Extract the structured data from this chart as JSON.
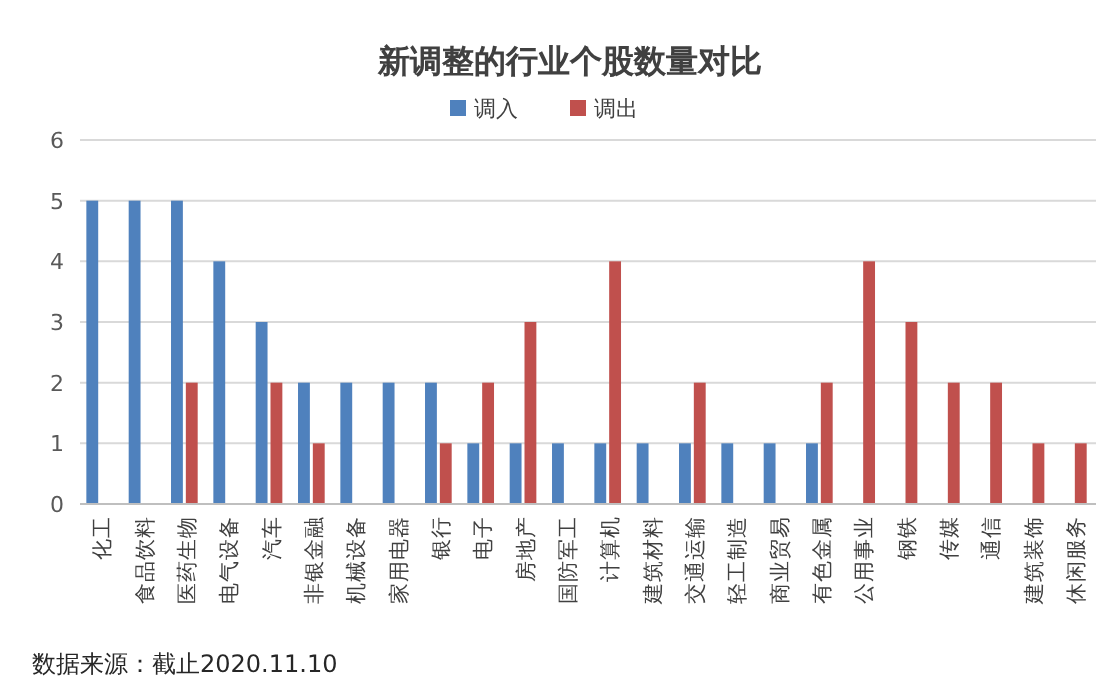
{
  "chart_data": {
    "type": "bar",
    "title": "新调整的行业个股数量对比",
    "categories": [
      "化工",
      "食品饮料",
      "医药生物",
      "电气设备",
      "汽车",
      "非银金融",
      "机械设备",
      "家用电器",
      "银行",
      "电子",
      "房地产",
      "国防军工",
      "计算机",
      "建筑材料",
      "交通运输",
      "轻工制造",
      "商业贸易",
      "有色金属",
      "公用事业",
      "钢铁",
      "传媒",
      "通信",
      "建筑装饰",
      "休闲服务"
    ],
    "series": [
      {
        "name": "调入",
        "color": "#4f81bd",
        "values": [
          5,
          5,
          5,
          4,
          3,
          2,
          2,
          2,
          2,
          1,
          1,
          1,
          1,
          1,
          1,
          1,
          1,
          1,
          0,
          0,
          0,
          0,
          0,
          0
        ]
      },
      {
        "name": "调出",
        "color": "#c0504d",
        "values": [
          0,
          0,
          2,
          0,
          2,
          1,
          0,
          0,
          1,
          2,
          3,
          0,
          4,
          0,
          2,
          0,
          0,
          2,
          4,
          3,
          2,
          2,
          1,
          1
        ]
      }
    ],
    "ylim": [
      0,
      6
    ],
    "yticks": [
      0,
      1,
      2,
      3,
      4,
      5,
      6
    ],
    "grid": "y",
    "legend": "top",
    "annotations": [
      "数据来源：截止2020.11.10"
    ]
  }
}
